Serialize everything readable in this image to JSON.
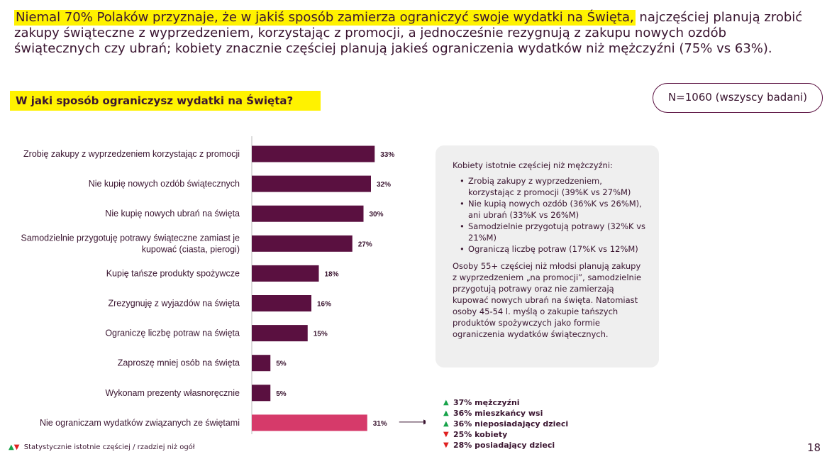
{
  "headline": {
    "highlighted": "Niemal 70% Polaków przyznaje, że w jakiś sposób zamierza ograniczyć swoje wydatki na Święta,",
    "rest": " najczęściej planują zrobić zakupy świąteczne z wyprzedzeniem, korzystając z promocji, a jednocześnie rezygnują z zakupu nowych ozdób świątecznych czy ubrań; kobiety znacznie częściej planują jakieś ograniczenia wydatków niż mężczyźni (75% vs 63%)."
  },
  "question": "W jaki sposób ograniczysz wydatki na Święta?",
  "sample": "N=1060 (wszyscy badani)",
  "colors": {
    "bar": "#5a1040",
    "bar_highlight": "#d63a6a",
    "highlight": "#fff200",
    "up": "#17a34a",
    "down": "#e02020"
  },
  "chart_data": {
    "type": "bar",
    "orientation": "horizontal",
    "categories": [
      [
        "Zrobię zakupy z wyprzedzeniem korzystając z promocji"
      ],
      [
        "Nie kupię nowych ozdób świątecznych"
      ],
      [
        "Nie kupię nowych ubrań na święta"
      ],
      [
        "Samodzielnie przygotuję potrawy świąteczne zamiast je",
        "kupować (ciasta, pierogi)"
      ],
      [
        "Kupię tańsze produkty spożywcze"
      ],
      [
        "Zrezygnuję z wyjazdów na święta"
      ],
      [
        "Ograniczę liczbę potraw na święta"
      ],
      [
        "Zaproszę mniej osób na święta"
      ],
      [
        "Wykonam prezenty własnoręcznie"
      ],
      [
        "Nie ograniczam wydatków związanych ze świętami"
      ]
    ],
    "values": [
      33,
      32,
      30,
      27,
      18,
      16,
      15,
      5,
      5,
      31
    ],
    "value_labels": [
      "33%",
      "32%",
      "30%",
      "27%",
      "18%",
      "16%",
      "15%",
      "5%",
      "5%",
      "31%"
    ],
    "highlighted_index": 9,
    "xlim": [
      0,
      100
    ],
    "unit": "%"
  },
  "note": {
    "intro": "Kobiety istotnie częściej niż mężczyźni:",
    "bullets": [
      "Zrobią zakupy z wyprzedzeniem, korzystając z promocji (39%K vs 27%M)",
      "Nie kupią nowych ozdób (36%K vs 26%M), ani ubrań (33%K vs 26%M)",
      "Samodzielnie przygotują potrawy (32%K vs 21%M)",
      "Ograniczą liczbę potraw (17%K vs 12%M)"
    ],
    "paragraph": "Osoby 55+ częściej niż młodsi planują zakupy z wyprzedzeniem „na promocji”, samodzielnie przygotują potrawy oraz nie zamierzają kupować nowych ubrań na święta. Natomiast osoby 45-54 l. myślą o zakupie tańszych produktów spożywczych jako formie ograniczenia wydatków świątecznych."
  },
  "demographics": [
    {
      "dir": "up",
      "symbol": "▲",
      "text": "37% mężczyźni"
    },
    {
      "dir": "up",
      "symbol": "▲",
      "text": "36% mieszkańcy wsi"
    },
    {
      "dir": "up",
      "symbol": "▲",
      "text": "36% nieposiadający dzieci"
    },
    {
      "dir": "down",
      "symbol": "▼",
      "text": "25% kobiety"
    },
    {
      "dir": "down",
      "symbol": "▼",
      "text": "28% posiadający dzieci"
    }
  ],
  "footnote": {
    "up_symbol": "▲",
    "down_symbol": "▼",
    "text": "Statystycznie istotnie częściej / rzadziej niż ogół"
  },
  "page_number": "18"
}
